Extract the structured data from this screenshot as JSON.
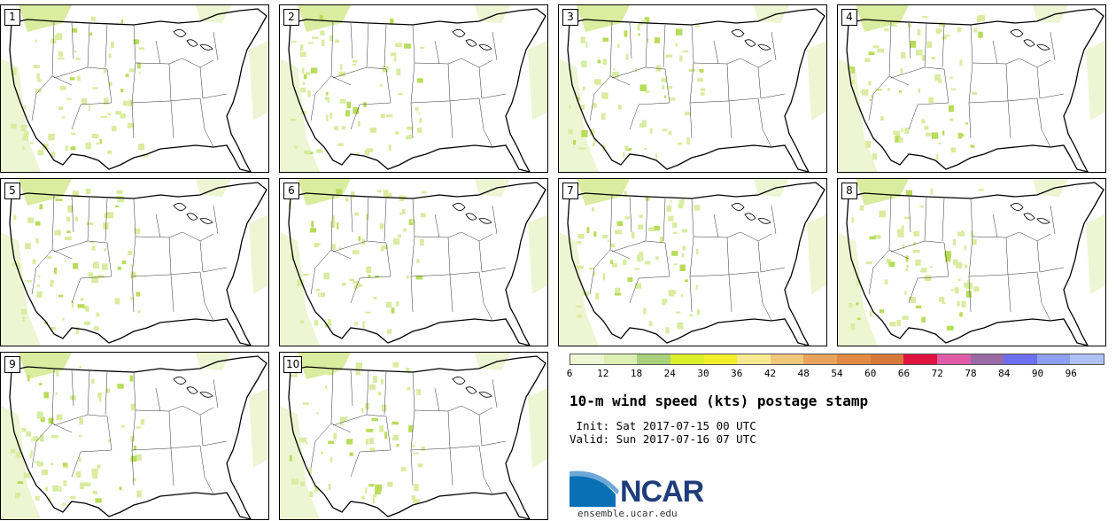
{
  "panels": [
    {
      "label": "1"
    },
    {
      "label": "2"
    },
    {
      "label": "3"
    },
    {
      "label": "4"
    },
    {
      "label": "5"
    },
    {
      "label": "6"
    },
    {
      "label": "7"
    },
    {
      "label": "8"
    },
    {
      "label": "9"
    },
    {
      "label": "10"
    }
  ],
  "colorbar": {
    "ticks": [
      "6",
      "12",
      "18",
      "24",
      "30",
      "36",
      "42",
      "48",
      "54",
      "60",
      "66",
      "72",
      "78",
      "84",
      "90",
      "96"
    ],
    "colors": [
      "#eef5d2",
      "#ddeeb3",
      "#a9d07a",
      "#dbee2a",
      "#f2ee2a",
      "#f7e892",
      "#f1c77c",
      "#e9a35c",
      "#e08a43",
      "#d8783b",
      "#e0153f",
      "#df5da7",
      "#9a6aa5",
      "#6d6ff0",
      "#8c9ff2",
      "#aec1f5"
    ]
  },
  "title": "10-m wind speed (kts) postage stamp",
  "init": " Init: Sat 2017-07-15 00 UTC",
  "valid": "Valid: Sun 2017-07-16 07 UTC",
  "brand": {
    "name": "NCAR",
    "site": "ensemble.ucar.edu",
    "color": "#1f3d7a",
    "accent": "#0a70b6"
  },
  "map": {
    "region": "Contiguous United States",
    "fill_low": "#eef5d2",
    "fill_mid": "#d9ec9f",
    "fill_high": "#b9dc5a"
  }
}
